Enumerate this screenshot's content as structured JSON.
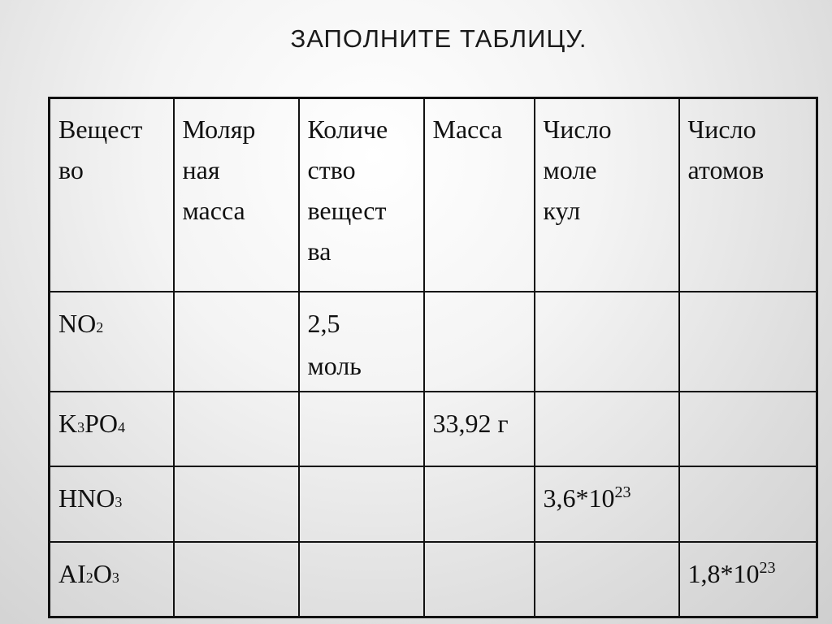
{
  "title": "ЗАПОЛНИТЕ ТАБЛИЦУ.",
  "table": {
    "headers": [
      [
        "Вещест",
        "во"
      ],
      [
        "Моляр",
        "ная",
        "масса"
      ],
      [
        "Количе",
        "ство",
        "вещест",
        "ва"
      ],
      [
        "Масса"
      ],
      [
        "Число",
        "моле",
        "кул"
      ],
      [
        "Число",
        "атомов"
      ]
    ],
    "rows": [
      {
        "formula": [
          [
            "NO",
            ""
          ],
          [
            "2",
            "sub"
          ]
        ],
        "cells": [
          "",
          "2,5 моль",
          "",
          "",
          ""
        ]
      },
      {
        "formula": [
          [
            "K",
            ""
          ],
          [
            "3",
            "sub"
          ],
          [
            "PO",
            ""
          ],
          [
            "4",
            "sub"
          ]
        ],
        "cells": [
          "",
          "",
          "33,92 г",
          "",
          ""
        ]
      },
      {
        "formula": [
          [
            "HNO",
            ""
          ],
          [
            "3",
            "sub"
          ]
        ],
        "cells": [
          "",
          "",
          "",
          "3,6*10^23",
          ""
        ]
      },
      {
        "formula": [
          [
            "AI",
            ""
          ],
          [
            "2",
            "sub"
          ],
          [
            "O",
            ""
          ],
          [
            "3",
            "sub"
          ]
        ],
        "cells": [
          "",
          "",
          "",
          "",
          "1,8*10^23"
        ]
      }
    ]
  }
}
